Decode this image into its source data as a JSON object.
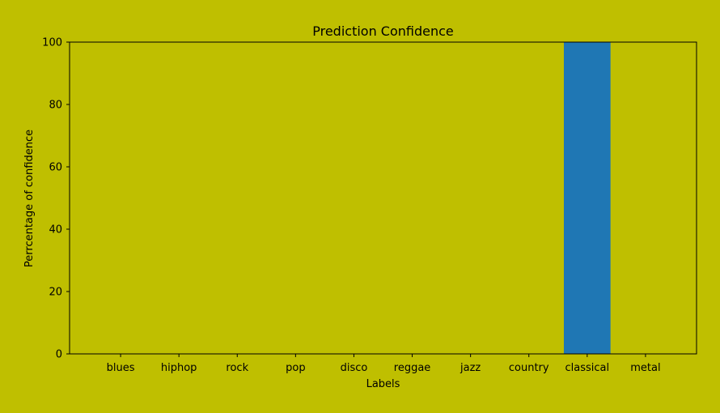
{
  "colors": {
    "background": "#bfbf00",
    "bar": "#1f77b4",
    "axis": "#000000"
  },
  "chart_data": {
    "type": "bar",
    "title": "Prediction Confidence",
    "xlabel": "Labels",
    "ylabel": "Perrcentage of confidence",
    "categories": [
      "blues",
      "hiphop",
      "rock",
      "pop",
      "disco",
      "reggae",
      "jazz",
      "country",
      "classical",
      "metal"
    ],
    "values": [
      0,
      0,
      0,
      0,
      0,
      0,
      0,
      0,
      100,
      0
    ],
    "ylim": [
      0,
      100
    ],
    "yticks": [
      0,
      20,
      40,
      60,
      80,
      100
    ],
    "grid": false,
    "legend": "none"
  }
}
